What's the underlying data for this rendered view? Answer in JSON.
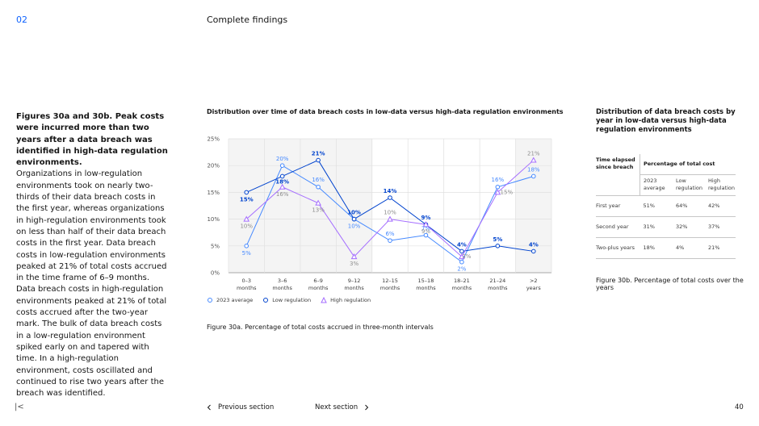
{
  "header": {
    "section_number": "02",
    "section_title": "Complete findings"
  },
  "left_text": {
    "lead": "Figures 30a and 30b. Peak costs were incurred more than two years after a data breach was identified in high-data regulation environments.",
    "body": "Organizations in low-regulation environments took on nearly two-thirds of their data breach costs in the first year, whereas organizations in high-regulation environments took on less than half of their data breach costs in the first year. Data breach costs in low-regulation environments peaked at 21% of total costs accrued in the time frame of 6–9 months. Data breach costs in high-regulation environments peaked at 21% of total costs accrued after the two-year mark. The bulk of data breach costs in a low-regulation environment spiked early on and tapered with time. In a high-regulation environment, costs oscillated and continued to rise two years after the breach was identified."
  },
  "chart_title": "Distribution over time of data breach costs in low-data versus high-data regulation environments",
  "chart_caption": "Figure 30a. Percentage of total costs accrued in three-month intervals",
  "chart_data": {
    "type": "line",
    "categories": [
      "0–3 months",
      "3–6 months",
      "6–9 months",
      "9–12 months",
      "12–15 months",
      "15–18 months",
      "18–21 months",
      "21–24 months",
      ">2 years"
    ],
    "ylim": [
      0,
      25
    ],
    "yticks": [
      "0%",
      "5%",
      "10%",
      "15%",
      "20%",
      "25%"
    ],
    "series": [
      {
        "name": "2023 average",
        "marker": "circle",
        "color": "#4589ff",
        "values": [
          5,
          20,
          16,
          10,
          6,
          7,
          2,
          16,
          18
        ]
      },
      {
        "name": "Low regulation",
        "marker": "circle",
        "color": "#0043ce",
        "values": [
          15,
          18,
          21,
          10,
          14,
          9,
          4,
          5,
          4
        ]
      },
      {
        "name": "High regulation",
        "marker": "triangle",
        "color": "#a56eff",
        "values": [
          10,
          16,
          13,
          3,
          10,
          9,
          3,
          15,
          21
        ]
      }
    ],
    "labels": [
      "5%",
      "20%",
      "16%",
      "10%",
      "6%",
      "7%",
      "2%",
      "16%",
      "18%",
      "15%",
      "18%",
      "21%",
      "10%",
      "14%",
      "9%",
      "4%",
      "5%",
      "4%",
      "10%",
      "16%",
      "13%",
      "3%",
      "10%",
      "9%",
      "3%",
      "15%",
      "21%"
    ]
  },
  "table": {
    "title": "Distribution of data breach costs by year in low-data versus high-data regulation environments",
    "header_left": "Time elapsed since breach",
    "header_group": "Percentage of total cost",
    "columns": [
      "2023 average",
      "Low regulation",
      "High regulation"
    ],
    "rows": [
      {
        "label": "First year",
        "values": [
          "51%",
          "64%",
          "42%"
        ]
      },
      {
        "label": "Second year",
        "values": [
          "31%",
          "32%",
          "37%"
        ]
      },
      {
        "label": "Two-plus years",
        "values": [
          "18%",
          "4%",
          "21%"
        ]
      }
    ],
    "caption": "Figure 30b. Percentage of total costs over the years"
  },
  "footer": {
    "home_glyph": "|<",
    "prev_label": "Previous section",
    "next_label": "Next section",
    "page_number": "40"
  },
  "colors": {
    "accent": "#0f62fe",
    "avg": "#4589ff",
    "low": "#0043ce",
    "high": "#a56eff"
  }
}
